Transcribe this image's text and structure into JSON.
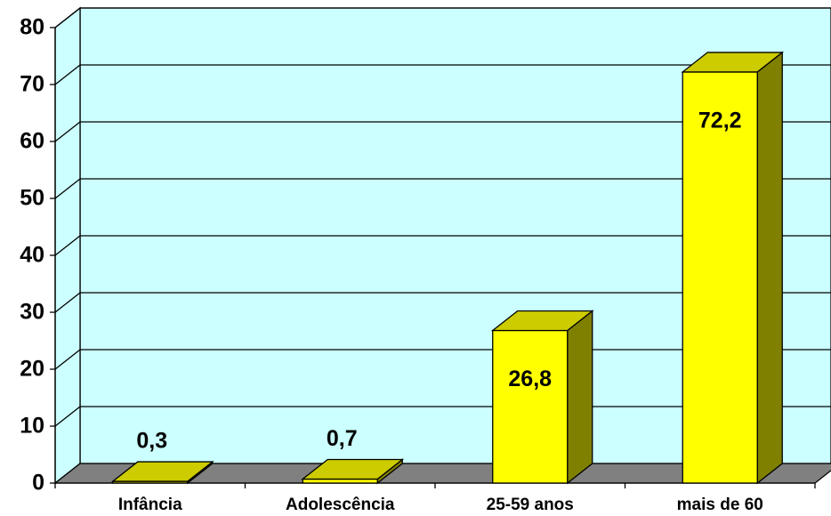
{
  "chart_data": {
    "type": "bar3d",
    "categories": [
      "Infância",
      "Adolescência",
      "25-59 anos",
      "mais de 60"
    ],
    "values": [
      0.3,
      0.7,
      26.8,
      72.2
    ],
    "value_labels": [
      "0,3",
      "0,7",
      "26,8",
      "72,2"
    ],
    "color": "#ffff00",
    "ylim": [
      0,
      80
    ],
    "yticks": [
      0,
      10,
      20,
      30,
      40,
      50,
      60,
      70,
      80
    ],
    "grid": true
  }
}
